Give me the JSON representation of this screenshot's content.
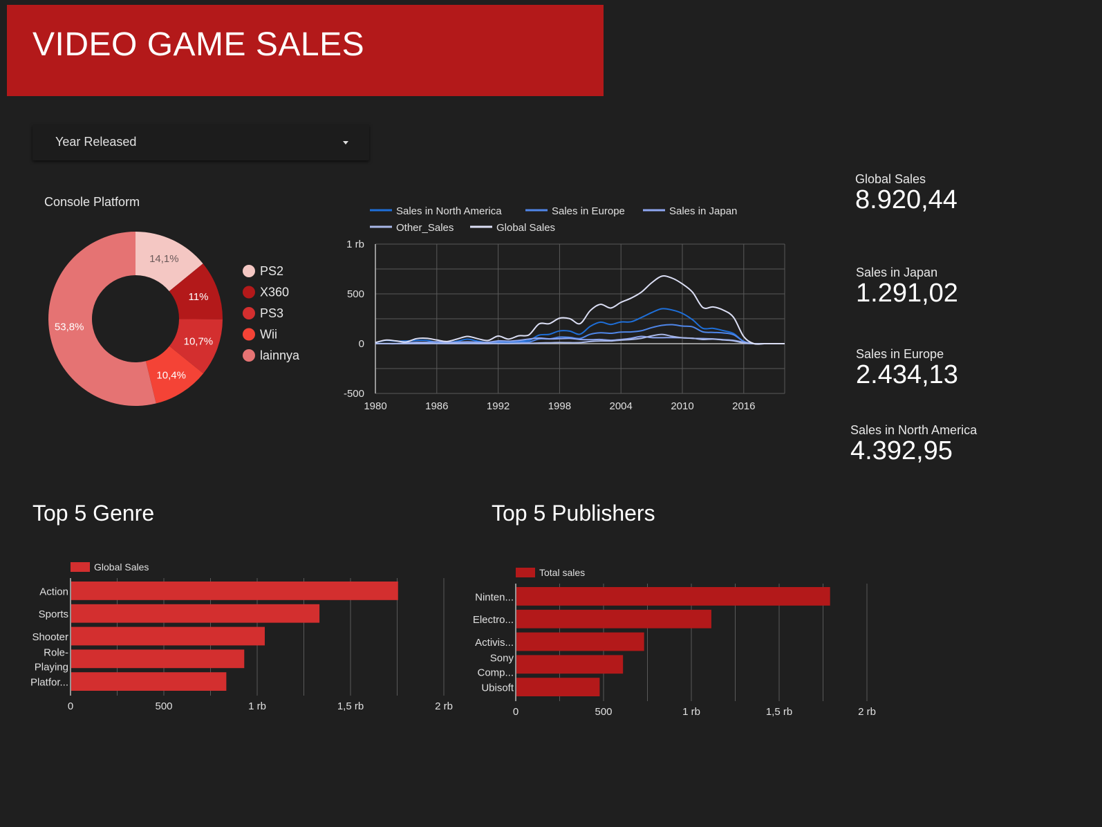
{
  "header": {
    "title": "VIDEO GAME SALES",
    "color": "#b3191a"
  },
  "filter": {
    "label": "Year Released",
    "icon": "caret-down-icon"
  },
  "kpis": [
    {
      "label": "Global Sales",
      "value": "8.920,44"
    },
    {
      "label": "Sales in Japan",
      "value": "1.291,02"
    },
    {
      "label": "Sales in Europe",
      "value": "2.434,13"
    },
    {
      "label": "Sales in North America",
      "value": "4.392,95"
    }
  ],
  "sections": {
    "genre_title": "Top 5 Genre",
    "publisher_title": "Top 5 Publishers"
  },
  "chart_data": [
    {
      "type": "pie",
      "donut": true,
      "title": "Console Platform",
      "legend_position": "right",
      "slices": [
        {
          "name": "PS2",
          "value": 14.1,
          "label": "14,1%",
          "color": "#f4c7c3"
        },
        {
          "name": "X360",
          "value": 11.0,
          "label": "11%",
          "color": "#b3191a"
        },
        {
          "name": "PS3",
          "value": 10.7,
          "label": "10,7%",
          "color": "#d32f2f"
        },
        {
          "name": "Wii",
          "value": 10.4,
          "label": "10,4%",
          "color": "#f44336"
        },
        {
          "name": "lainnya",
          "value": 53.8,
          "label": "53,8%",
          "color": "#e57373"
        }
      ]
    },
    {
      "type": "line",
      "legend_position": "top",
      "grid": true,
      "x": [
        1980,
        1981,
        1982,
        1983,
        1984,
        1985,
        1986,
        1987,
        1988,
        1989,
        1990,
        1991,
        1992,
        1993,
        1994,
        1995,
        1996,
        1997,
        1998,
        1999,
        2000,
        2001,
        2002,
        2003,
        2004,
        2005,
        2006,
        2007,
        2008,
        2009,
        2010,
        2011,
        2012,
        2013,
        2014,
        2015,
        2016,
        2017,
        2018,
        2019,
        2020
      ],
      "xticks": [
        "1980",
        "1986",
        "1992",
        "1998",
        "2004",
        "2010",
        "2016"
      ],
      "xlim": [
        1980,
        2020
      ],
      "yticks": [
        "1 rb",
        "500",
        "0",
        "-500"
      ],
      "ylim": [
        -500,
        1000
      ],
      "series": [
        {
          "name": "Sales in North America",
          "color": "#1e6fd9",
          "values": [
            10,
            33,
            26,
            27,
            33,
            33,
            12,
            9,
            24,
            45,
            25,
            12,
            22,
            16,
            28,
            32,
            86,
            94,
            128,
            126,
            95,
            174,
            216,
            193,
            218,
            220,
            263,
            312,
            351,
            338,
            304,
            240,
            154,
            154,
            131,
            102,
            22,
            0,
            0,
            0,
            0
          ]
        },
        {
          "name": "Sales in Europe",
          "color": "#4f86e8",
          "values": [
            1,
            2,
            2,
            1,
            2,
            5,
            3,
            2,
            7,
            9,
            6,
            4,
            11,
            5,
            15,
            16,
            48,
            48,
            66,
            63,
            52,
            94,
            109,
            104,
            116,
            118,
            130,
            161,
            184,
            191,
            177,
            169,
            119,
            113,
            108,
            90,
            23,
            0,
            0,
            0,
            0
          ]
        },
        {
          "name": "Sales in Japan",
          "color": "#8ea6f0",
          "values": [
            0,
            0,
            0,
            8,
            14,
            14,
            19,
            12,
            15,
            18,
            15,
            14,
            28,
            25,
            33,
            46,
            56,
            48,
            50,
            53,
            42,
            40,
            42,
            34,
            42,
            54,
            73,
            61,
            60,
            61,
            59,
            53,
            51,
            48,
            40,
            33,
            14,
            0,
            0,
            0,
            0
          ]
        },
        {
          "name": "Other_Sales",
          "color": "#a9b8e8",
          "values": [
            0,
            0,
            0,
            0,
            1,
            1,
            2,
            1,
            1,
            2,
            1,
            1,
            2,
            2,
            3,
            4,
            7,
            9,
            11,
            10,
            11,
            22,
            27,
            27,
            36,
            42,
            54,
            78,
            93,
            74,
            59,
            55,
            42,
            46,
            37,
            29,
            7,
            0,
            0,
            0,
            0
          ]
        },
        {
          "name": "Global Sales",
          "color": "#dcdff5",
          "values": [
            11,
            36,
            28,
            17,
            50,
            54,
            37,
            22,
            47,
            73,
            50,
            32,
            76,
            46,
            79,
            88,
            199,
            201,
            256,
            251,
            201,
            332,
            395,
            358,
            415,
            458,
            518,
            611,
            678,
            658,
            600,
            516,
            363,
            369,
            337,
            265,
            71,
            0,
            0,
            0,
            0
          ]
        }
      ]
    },
    {
      "type": "bar",
      "orientation": "horizontal",
      "legend": "Global Sales",
      "color": "#d32f2f",
      "categories": [
        "Action",
        "Sports",
        "Shooter",
        "Role-Playing",
        "Platfor..."
      ],
      "category_lines": [
        [
          "Action"
        ],
        [
          "Sports"
        ],
        [
          "Shooter"
        ],
        [
          "Role-",
          "Playing"
        ],
        [
          "Platfor..."
        ]
      ],
      "values": [
        1751,
        1330,
        1037,
        927,
        831
      ],
      "xlim": [
        0,
        2000
      ],
      "xticks": [
        {
          "value": 0,
          "label": "0"
        },
        {
          "value": 500,
          "label": "500"
        },
        {
          "value": 1000,
          "label": "1 rb"
        },
        {
          "value": 1500,
          "label": "1,5 rb"
        },
        {
          "value": 2000,
          "label": "2 rb"
        }
      ]
    },
    {
      "type": "bar",
      "orientation": "horizontal",
      "legend": "Total sales",
      "color": "#b3191a",
      "categories": [
        "Ninten...",
        "Electro...",
        "Activis...",
        "Sony Comp...",
        "Ubisoft"
      ],
      "category_lines": [
        [
          "Ninten..."
        ],
        [
          "Electro..."
        ],
        [
          "Activis..."
        ],
        [
          "Sony",
          "Comp..."
        ],
        [
          "Ubisoft"
        ]
      ],
      "values": [
        1786,
        1110,
        727,
        607,
        474
      ],
      "xlim": [
        0,
        2000
      ],
      "xticks": [
        {
          "value": 0,
          "label": "0"
        },
        {
          "value": 500,
          "label": "500"
        },
        {
          "value": 1000,
          "label": "1 rb"
        },
        {
          "value": 1500,
          "label": "1,5 rb"
        },
        {
          "value": 2000,
          "label": "2 rb"
        }
      ]
    }
  ]
}
